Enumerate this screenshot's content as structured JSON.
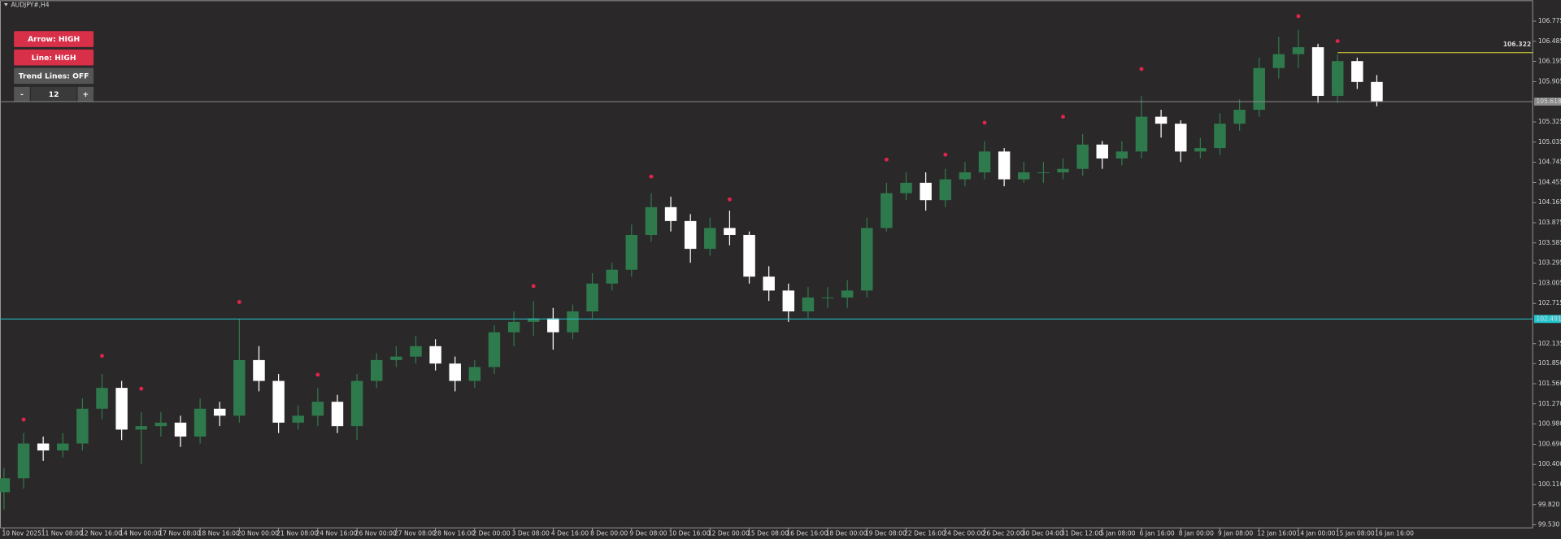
{
  "header": {
    "title": "AUDJPY#,H4"
  },
  "controls": {
    "arrow": "Arrow: HIGH",
    "line": "Line: HIGH",
    "trend_lines": "Trend Lines: OFF",
    "minus": "-",
    "period": 12,
    "plus": "+"
  },
  "chart_data": {
    "type": "candlestick",
    "categories": [
      "10 Nov 2025",
      null,
      "11 Nov 08:00",
      null,
      "12 Nov 16:00",
      null,
      "14 Nov 00:00",
      null,
      "17 Nov 08:00",
      null,
      "18 Nov 16:00",
      null,
      "20 Nov 00:00",
      null,
      "21 Nov 08:00",
      null,
      "24 Nov 16:00",
      null,
      "26 Nov 00:00",
      null,
      "27 Nov 08:00",
      null,
      "28 Nov 16:00",
      null,
      "2 Dec 00:00",
      null,
      "3 Dec 08:00",
      null,
      "4 Dec 16:00",
      null,
      "8 Dec 00:00",
      null,
      "9 Dec 08:00",
      null,
      "10 Dec 16:00",
      null,
      "12 Dec 00:00",
      null,
      "15 Dec 08:00",
      null,
      "16 Dec 16:00",
      null,
      "18 Dec 00:00",
      null,
      "19 Dec 08:00",
      null,
      "22 Dec 16:00",
      null,
      "24 Dec 00:00",
      null,
      "26 Dec 20:00",
      null,
      "30 Dec 04:00",
      null,
      "31 Dec 12:00",
      null,
      "5 Jan 08:00",
      null,
      "6 Jan 16:00",
      null,
      "8 Jan 00:00",
      null,
      "9 Jan 08:00",
      null,
      "12 Jan 16:00",
      null,
      "14 Jan 00:00",
      null,
      "15 Jan 08:00",
      null,
      "16 Jan 16:00"
    ],
    "open": [
      100.0,
      100.2,
      100.7,
      100.6,
      100.7,
      101.2,
      101.5,
      100.9,
      100.95,
      101.0,
      100.8,
      101.2,
      101.1,
      101.9,
      101.6,
      101.0,
      101.1,
      101.3,
      100.95,
      101.6,
      101.9,
      101.95,
      102.1,
      101.85,
      101.6,
      101.8,
      102.3,
      102.45,
      102.5,
      102.3,
      102.6,
      103.0,
      103.2,
      103.7,
      104.1,
      103.9,
      103.5,
      103.8,
      103.7,
      103.1,
      102.9,
      102.6,
      102.8,
      102.8,
      102.9,
      103.8,
      104.3,
      104.45,
      104.2,
      104.5,
      104.6,
      104.9,
      104.5,
      104.6,
      104.6,
      104.65,
      105.0,
      104.8,
      104.9,
      105.4,
      105.3,
      104.9,
      104.95,
      105.3,
      105.5,
      106.1,
      106.3,
      106.4,
      105.7,
      106.2,
      105.9
    ],
    "high": [
      100.35,
      100.85,
      100.8,
      100.85,
      101.35,
      101.7,
      101.6,
      101.15,
      101.15,
      101.1,
      101.35,
      101.3,
      102.49,
      102.1,
      101.7,
      101.25,
      101.5,
      101.4,
      101.7,
      102.0,
      102.1,
      102.25,
      102.2,
      101.95,
      101.9,
      102.4,
      102.6,
      102.75,
      102.65,
      102.7,
      103.15,
      103.3,
      103.85,
      104.3,
      104.25,
      104.0,
      103.95,
      104.05,
      103.75,
      103.25,
      103.0,
      102.95,
      102.95,
      103.05,
      103.95,
      104.45,
      104.6,
      104.6,
      104.65,
      104.75,
      105.05,
      104.95,
      104.75,
      104.75,
      104.8,
      105.15,
      105.05,
      105.05,
      105.7,
      105.5,
      105.35,
      105.1,
      105.45,
      105.65,
      106.25,
      106.55,
      106.65,
      106.45,
      106.3,
      106.25,
      106.0
    ],
    "low": [
      99.75,
      100.05,
      100.45,
      100.5,
      100.6,
      101.05,
      100.75,
      100.4,
      100.8,
      100.65,
      100.7,
      100.95,
      101.0,
      101.45,
      100.85,
      100.9,
      100.95,
      100.85,
      100.75,
      101.5,
      101.8,
      101.85,
      101.75,
      101.45,
      101.5,
      101.7,
      102.1,
      102.25,
      102.05,
      102.2,
      102.5,
      102.9,
      103.1,
      103.6,
      103.75,
      103.3,
      103.4,
      103.55,
      103.0,
      102.75,
      102.45,
      102.5,
      102.65,
      102.65,
      102.8,
      103.75,
      104.2,
      104.05,
      104.1,
      104.4,
      104.5,
      104.4,
      104.45,
      104.45,
      104.5,
      104.55,
      104.65,
      104.7,
      104.8,
      105.1,
      104.75,
      104.8,
      104.85,
      105.2,
      105.4,
      105.95,
      106.1,
      105.6,
      105.6,
      105.8,
      105.55
    ],
    "close": [
      100.2,
      100.7,
      100.6,
      100.7,
      101.2,
      101.5,
      100.9,
      100.95,
      101.0,
      100.8,
      101.2,
      101.1,
      101.9,
      101.6,
      101.0,
      101.1,
      101.3,
      100.95,
      101.6,
      101.9,
      101.95,
      102.1,
      101.85,
      101.6,
      101.8,
      102.3,
      102.45,
      102.5,
      102.3,
      102.6,
      103.0,
      103.2,
      103.7,
      104.1,
      103.9,
      103.5,
      103.8,
      103.7,
      103.1,
      102.9,
      102.6,
      102.8,
      102.8,
      102.9,
      103.8,
      104.3,
      104.45,
      104.2,
      104.5,
      104.6,
      104.9,
      104.5,
      104.6,
      104.6,
      104.65,
      105.0,
      104.8,
      104.9,
      105.4,
      105.3,
      104.9,
      104.95,
      105.3,
      105.5,
      106.1,
      106.3,
      106.4,
      105.7,
      106.2,
      105.9,
      105.618
    ],
    "up_color": "#2f7a4c",
    "down_color": "#ffffff",
    "ylim": [
      99.487,
      107.076
    ],
    "yticks": [
      106.775,
      106.485,
      106.195,
      105.905,
      105.325,
      105.035,
      104.745,
      104.455,
      104.165,
      103.875,
      103.585,
      103.295,
      103.005,
      102.715,
      102.135,
      {
        "value": 101.85,
        "label": "101.850"
      },
      {
        "value": 101.56,
        "label": "101.560"
      },
      {
        "value": 101.27,
        "label": "101.270"
      },
      {
        "value": 100.98,
        "label": "100.980"
      },
      {
        "value": 100.69,
        "label": "100.690"
      },
      {
        "value": 100.4,
        "label": "100.400"
      },
      {
        "value": 100.11,
        "label": "100.110"
      },
      {
        "value": 99.82,
        "label": "99.820"
      },
      {
        "value": 99.53,
        "label": "99.530"
      }
    ],
    "signals": {
      "color": "#e0244a",
      "x": [
        1,
        5,
        7,
        12,
        16,
        27,
        33,
        37,
        45,
        48,
        50,
        54,
        58,
        66,
        68
      ],
      "values": [
        101.044,
        101.961,
        101.488,
        102.735,
        101.689,
        102.964,
        104.54,
        104.211,
        104.784,
        104.855,
        105.314,
        105.4,
        106.087,
        106.847,
        106.488
      ]
    },
    "levels": [
      {
        "value": 102.491,
        "color": "#25c6d0"
      },
      {
        "value": 106.322,
        "color": "#e6df3c",
        "x_start": 68
      },
      {
        "value": 105.618,
        "color": "#8a8a8a"
      }
    ]
  }
}
